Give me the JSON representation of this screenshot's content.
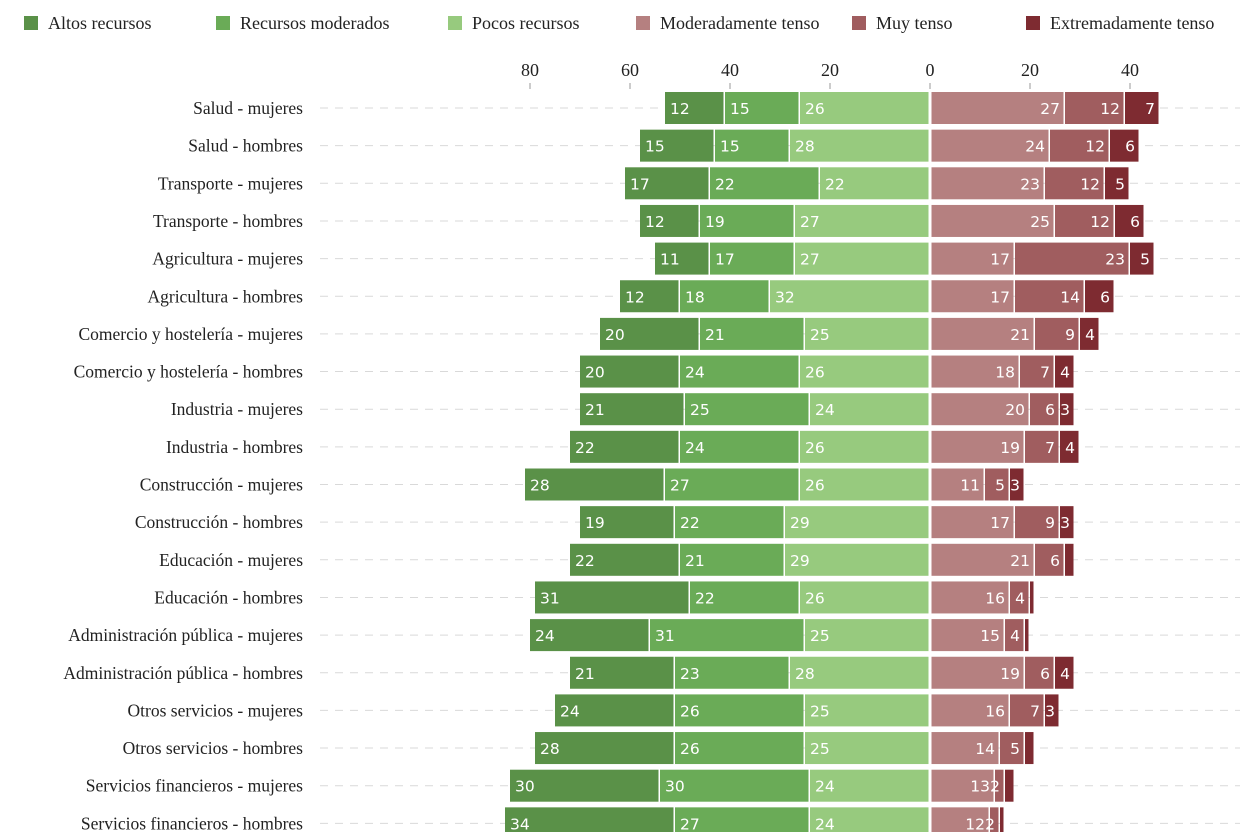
{
  "colors": {
    "altos": "#5a9148",
    "moderados": "#6aab57",
    "pocos": "#97ca7e",
    "mod_tenso": "#b58080",
    "muy_tenso": "#a05d5f",
    "extremo": "#7e2b31",
    "grid": "#d9d9d9"
  },
  "legend": [
    {
      "label": "Altos recursos",
      "color": "#5a9148"
    },
    {
      "label": "Recursos moderados",
      "color": "#6aab57"
    },
    {
      "label": "Pocos recursos",
      "color": "#97ca7e"
    },
    {
      "label": "Moderadamente tenso",
      "color": "#b58080"
    },
    {
      "label": "Muy tenso",
      "color": "#a05d5f"
    },
    {
      "label": "Extremadamente tenso",
      "color": "#7e2b31"
    }
  ],
  "chart_data": {
    "type": "bar",
    "orientation": "horizontal-diverging",
    "xlim": [
      -88,
      48
    ],
    "tick_values": [
      -80,
      -60,
      -40,
      -20,
      0,
      20,
      40
    ],
    "tick_labels": [
      "80",
      "60",
      "40",
      "20",
      "0",
      "20",
      "40"
    ],
    "grid": true,
    "legend_position": "top",
    "categories": [
      "Salud - mujeres",
      "Salud - hombres",
      "Transporte - mujeres",
      "Transporte - hombres",
      "Agricultura - mujeres",
      "Agricultura - hombres",
      "Comercio y hostelería - mujeres",
      "Comercio y hostelería - hombres",
      "Industria - mujeres",
      "Industria - hombres",
      "Construcción - mujeres",
      "Construcción - hombres",
      "Educación - mujeres",
      "Educación - hombres",
      "Administración pública - mujeres",
      "Administración pública - hombres",
      "Otros servicios - mujeres",
      "Otros servicios - hombres",
      "Servicios financieros - mujeres",
      "Servicios financieros - hombres"
    ],
    "series": [
      {
        "name": "Altos recursos",
        "side": "left",
        "values": [
          12,
          15,
          17,
          12,
          11,
          12,
          20,
          20,
          21,
          22,
          28,
          19,
          22,
          31,
          24,
          21,
          24,
          28,
          30,
          34
        ]
      },
      {
        "name": "Recursos moderados",
        "side": "left",
        "values": [
          15,
          15,
          22,
          19,
          17,
          18,
          21,
          24,
          25,
          24,
          27,
          22,
          21,
          22,
          31,
          23,
          26,
          26,
          30,
          27
        ]
      },
      {
        "name": "Pocos recursos",
        "side": "left",
        "values": [
          26,
          28,
          22,
          27,
          27,
          32,
          25,
          26,
          24,
          26,
          26,
          29,
          29,
          26,
          25,
          28,
          25,
          25,
          24,
          24
        ]
      },
      {
        "name": "Moderadamente tenso",
        "side": "right",
        "values": [
          27,
          24,
          23,
          25,
          17,
          17,
          21,
          18,
          20,
          19,
          11,
          17,
          21,
          16,
          15,
          19,
          16,
          14,
          13,
          12
        ]
      },
      {
        "name": "Muy tenso",
        "side": "right",
        "values": [
          12,
          12,
          12,
          12,
          23,
          14,
          9,
          7,
          6,
          7,
          5,
          9,
          6,
          4,
          4,
          6,
          7,
          5,
          2,
          2
        ]
      },
      {
        "name": "Extremadamente tenso",
        "side": "right",
        "values": [
          7,
          6,
          5,
          6,
          5,
          6,
          4,
          4,
          3,
          4,
          3,
          3,
          2,
          1,
          1,
          4,
          3,
          2,
          2,
          1
        ]
      }
    ],
    "labels_shown": [
      [
        true,
        true,
        true,
        true,
        true,
        true
      ],
      [
        true,
        true,
        true,
        true,
        true,
        true
      ],
      [
        true,
        true,
        true,
        true,
        true,
        true
      ],
      [
        true,
        true,
        true,
        true,
        true,
        true
      ],
      [
        true,
        true,
        true,
        true,
        true,
        true
      ],
      [
        true,
        true,
        true,
        true,
        true,
        true
      ],
      [
        true,
        true,
        true,
        true,
        true,
        true
      ],
      [
        true,
        true,
        true,
        true,
        true,
        true
      ],
      [
        true,
        true,
        true,
        true,
        true,
        true
      ],
      [
        true,
        true,
        true,
        true,
        true,
        true
      ],
      [
        true,
        true,
        true,
        true,
        true,
        true
      ],
      [
        true,
        true,
        true,
        true,
        true,
        true
      ],
      [
        true,
        true,
        true,
        true,
        true,
        false
      ],
      [
        true,
        true,
        true,
        true,
        true,
        false
      ],
      [
        true,
        true,
        true,
        true,
        true,
        false
      ],
      [
        true,
        true,
        true,
        true,
        true,
        true
      ],
      [
        true,
        true,
        true,
        true,
        true,
        true
      ],
      [
        true,
        true,
        true,
        true,
        true,
        false
      ],
      [
        true,
        true,
        true,
        true,
        true,
        false
      ],
      [
        true,
        true,
        true,
        true,
        true,
        false
      ]
    ]
  }
}
